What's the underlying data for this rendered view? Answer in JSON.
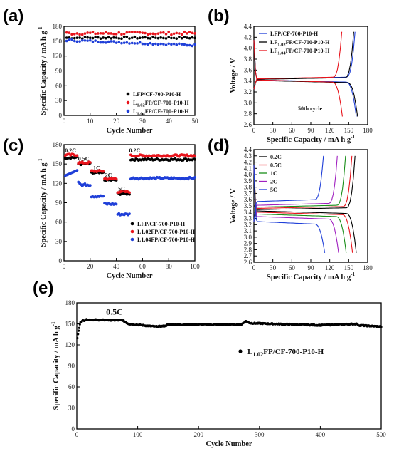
{
  "panels": [
    {
      "id": "a",
      "label": "(a)"
    },
    {
      "id": "b",
      "label": "(b)"
    },
    {
      "id": "c",
      "label": "(c)"
    },
    {
      "id": "d",
      "label": "(d)"
    },
    {
      "id": "e",
      "label": "(e)"
    }
  ],
  "chart_data": [
    {
      "id": "a",
      "type": "scatter",
      "xlabel": "Cycle Number",
      "ylabel": "Specific Capacity / mA h g",
      "ylabel_sup": "-1",
      "xlim": [
        0,
        50
      ],
      "ylim": [
        0,
        180
      ],
      "xticks": [
        0,
        10,
        20,
        30,
        40,
        50
      ],
      "yticks": [
        0,
        30,
        60,
        90,
        120,
        150,
        180
      ],
      "legend_position": "center-right",
      "series": [
        {
          "name": "LFP/CF-700-P10-H",
          "color": "#000000",
          "x_range": [
            1,
            50
          ],
          "base": 157,
          "noise": 2
        },
        {
          "name_main": "L",
          "name_sub": "1.02",
          "name_rest": "FP/CF-700-P10-H",
          "color": "#e8141c",
          "x_range": [
            1,
            50
          ],
          "base": 166,
          "noise": 3
        },
        {
          "name_main": "L",
          "name_sub": "1.04",
          "name_rest": "FP/CF-700-P10-H",
          "color": "#1f3fd8",
          "x_range": [
            1,
            50
          ],
          "start": 152,
          "end": 142,
          "noise": 2
        }
      ]
    },
    {
      "id": "b",
      "type": "line",
      "xlabel": "Specific Capacity / mA h g",
      "xlabel_sup": "-1",
      "ylabel": "Voltage / V",
      "xlim": [
        0,
        180
      ],
      "ylim": [
        2.6,
        4.4
      ],
      "xticks": [
        0,
        30,
        60,
        90,
        120,
        150,
        180
      ],
      "yticks": [
        2.6,
        2.8,
        3.0,
        3.2,
        3.4,
        3.6,
        3.8,
        4.0,
        4.2,
        4.4
      ],
      "annotation": "50th cycle",
      "legend_position": "top-left",
      "series": [
        {
          "name": "LFP/CF-700-P10-H",
          "color": "#1f3fd8",
          "charge_cap": 160,
          "discharge_cap": 162,
          "charge_plateau": 3.44,
          "discharge_plateau": 3.4
        },
        {
          "name_main": "LF",
          "name_sub": "1.02",
          "name_rest": "FP/CF-700-P10-H",
          "color": "#000000",
          "charge_cap": 158,
          "discharge_cap": 164,
          "charge_plateau": 3.43,
          "discharge_plateau": 3.39
        },
        {
          "name_main": "LF",
          "name_sub": "1.04",
          "name_rest": "FP/CF-700-P10-H",
          "color": "#e8141c",
          "charge_cap": 139,
          "discharge_cap": 140,
          "charge_plateau": 3.44,
          "discharge_plateau": 3.4
        }
      ]
    },
    {
      "id": "c",
      "type": "scatter",
      "xlabel": "Cycle Number",
      "ylabel": "Specific Capacity / mA h g",
      "ylabel_sup": "-1",
      "xlim": [
        0,
        100
      ],
      "ylim": [
        0,
        180
      ],
      "xticks": [
        0,
        20,
        40,
        60,
        80,
        100
      ],
      "yticks": [
        0,
        30,
        60,
        90,
        120,
        150,
        180
      ],
      "legend_position": "bottom-right",
      "rate_labels": [
        {
          "text": "0.2C",
          "x": 5,
          "y": 168
        },
        {
          "text": "0.5C",
          "x": 15,
          "y": 155
        },
        {
          "text": "1C",
          "x": 25,
          "y": 141
        },
        {
          "text": "2C",
          "x": 34,
          "y": 130
        },
        {
          "text": "5C",
          "x": 44,
          "y": 109
        },
        {
          "text": "0.2C",
          "x": 54,
          "y": 168
        }
      ],
      "series": [
        {
          "name": "LFP/CF-700-P10-H",
          "color": "#000000",
          "segments": [
            [
              1,
              10,
              160
            ],
            [
              11,
              20,
              150
            ],
            [
              21,
              30,
              136
            ],
            [
              31,
              40,
              125
            ],
            [
              41,
              50,
              104
            ],
            [
              51,
              100,
              157
            ]
          ]
        },
        {
          "name": "L1.02FP/CF-700-P10-H",
          "color": "#e8141c",
          "segments": [
            [
              1,
              10,
              164
            ],
            [
              11,
              20,
              152
            ],
            [
              21,
              30,
              139
            ],
            [
              31,
              40,
              127
            ],
            [
              41,
              50,
              107
            ],
            [
              51,
              100,
              163
            ]
          ]
        },
        {
          "name": "L1.04FP/CF-700-P10-H",
          "color": "#1f3fd8",
          "segments": [
            [
              1,
              10,
              135
            ],
            [
              11,
              20,
              118
            ],
            [
              21,
              30,
              100
            ],
            [
              31,
              40,
              88
            ],
            [
              41,
              50,
              72
            ],
            [
              51,
              100,
              128
            ]
          ]
        }
      ]
    },
    {
      "id": "d",
      "type": "line",
      "xlabel": "Specific Capacity / mA h g",
      "xlabel_sup": "-1",
      "ylabel": "Voltage / V",
      "xlim": [
        0,
        180
      ],
      "ylim": [
        2.6,
        4.4
      ],
      "xticks": [
        0,
        30,
        60,
        90,
        120,
        150,
        180
      ],
      "yticks": [
        2.6,
        2.7,
        2.8,
        2.9,
        3.0,
        3.1,
        3.2,
        3.3,
        3.4,
        3.5,
        3.6,
        3.7,
        3.8,
        3.9,
        4.0,
        4.1,
        4.2,
        4.3,
        4.4
      ],
      "legend_position": "top-left",
      "series": [
        {
          "name": "0.2C",
          "color": "#000000",
          "charge_cap": 160,
          "discharge_cap": 162,
          "charge_plateau": 3.44,
          "discharge_plateau": 3.4
        },
        {
          "name": "0.5C",
          "color": "#e8141c",
          "charge_cap": 155,
          "discharge_cap": 156,
          "charge_plateau": 3.46,
          "discharge_plateau": 3.38
        },
        {
          "name": "1C",
          "color": "#1a8f1a",
          "charge_cap": 145,
          "discharge_cap": 146,
          "charge_plateau": 3.48,
          "discharge_plateau": 3.35
        },
        {
          "name": "2C",
          "color": "#a020c0",
          "charge_cap": 132,
          "discharge_cap": 134,
          "charge_plateau": 3.51,
          "discharge_plateau": 3.31
        },
        {
          "name": "5C",
          "color": "#1f3fd8",
          "charge_cap": 110,
          "discharge_cap": 112,
          "charge_plateau": 3.57,
          "discharge_plateau": 3.23
        }
      ]
    },
    {
      "id": "e",
      "type": "scatter",
      "xlabel": "Cycle Number",
      "ylabel": "Specific Capacity / mA h g",
      "ylabel_sup": "-1",
      "xlim": [
        0,
        500
      ],
      "ylim": [
        0,
        180
      ],
      "xticks": [
        0,
        100,
        200,
        300,
        400,
        500
      ],
      "yticks": [
        0,
        30,
        60,
        90,
        120,
        150,
        180
      ],
      "annotation": "0.5C",
      "legend_position": "center-right",
      "series": [
        {
          "name_main": "L",
          "name_sub": "1.02",
          "name_rest": "FP/CF-700-P10-H",
          "color": "#000000",
          "profile": [
            [
              1,
              130
            ],
            [
              3,
              140
            ],
            [
              6,
              153
            ],
            [
              15,
              156
            ],
            [
              75,
              155
            ],
            [
              85,
              150
            ],
            [
              130,
              146
            ],
            [
              145,
              147
            ],
            [
              150,
              149
            ],
            [
              270,
              149
            ],
            [
              278,
              154
            ],
            [
              285,
              151
            ],
            [
              400,
              148
            ],
            [
              460,
              150
            ],
            [
              463,
              148
            ],
            [
              500,
              146
            ]
          ]
        }
      ]
    }
  ]
}
